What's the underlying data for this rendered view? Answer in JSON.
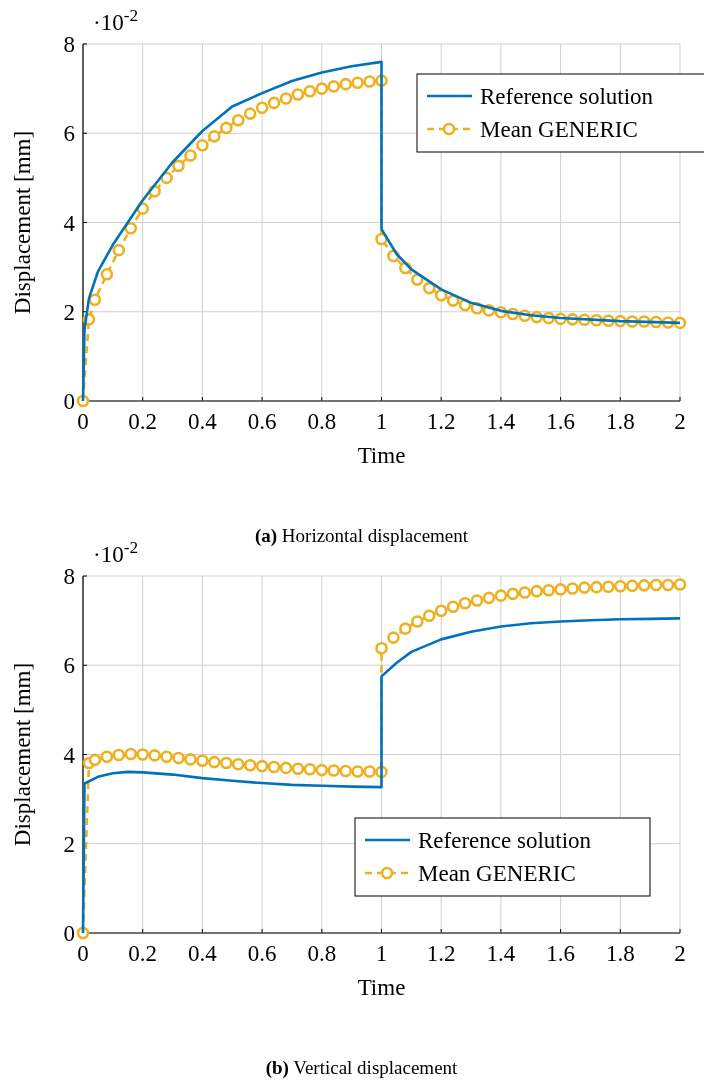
{
  "chart_data": [
    {
      "type": "line",
      "title": "(a) Horizontal displacement",
      "xlabel": "Time",
      "ylabel": "Displacement [mm]",
      "annotations": [
        "·10$^{-2}$"
      ],
      "xlim": [
        0,
        2
      ],
      "ylim": [
        0,
        8
      ],
      "xticks": [
        0,
        0.2,
        0.4,
        0.6,
        0.8,
        1,
        1.2,
        1.4,
        1.6,
        1.8,
        2
      ],
      "yticks": [
        0,
        2,
        4,
        6,
        8
      ],
      "grid": true,
      "legend": "top right",
      "series": [
        {
          "name": "Reference solution",
          "color": "#0072bd",
          "marker": "none",
          "line_style": "solid",
          "x": [
            0,
            0.005,
            0.02,
            0.05,
            0.1,
            0.15,
            0.2,
            0.3,
            0.4,
            0.5,
            0.6,
            0.7,
            0.8,
            0.9,
            1,
            1,
            1.05,
            1.1,
            1.2,
            1.3,
            1.4,
            1.5,
            1.6,
            1.8,
            2
          ],
          "values": [
            0,
            1.6,
            2.3,
            2.9,
            3.5,
            4.0,
            4.5,
            5.35,
            6.05,
            6.6,
            6.9,
            7.17,
            7.36,
            7.5,
            7.6,
            3.85,
            3.3,
            2.95,
            2.5,
            2.2,
            2.02,
            1.92,
            1.86,
            1.79,
            1.75
          ]
        },
        {
          "name": "Mean GENERIC",
          "color": "#edb120",
          "marker": "circle",
          "line_style": "dashed",
          "x": [
            0,
            0.02,
            0.04,
            0.08,
            0.12,
            0.16,
            0.2,
            0.24,
            0.28,
            0.32,
            0.36,
            0.4,
            0.44,
            0.48,
            0.52,
            0.56,
            0.6,
            0.64,
            0.68,
            0.72,
            0.76,
            0.8,
            0.84,
            0.88,
            0.92,
            0.96,
            1,
            1,
            1.04,
            1.08,
            1.12,
            1.16,
            1.2,
            1.24,
            1.28,
            1.32,
            1.36,
            1.4,
            1.44,
            1.48,
            1.52,
            1.56,
            1.6,
            1.64,
            1.68,
            1.72,
            1.76,
            1.8,
            1.84,
            1.88,
            1.92,
            1.96,
            2
          ],
          "values": [
            0,
            1.83,
            2.27,
            2.84,
            3.38,
            3.87,
            4.31,
            4.7,
            5.0,
            5.27,
            5.5,
            5.73,
            5.93,
            6.12,
            6.29,
            6.44,
            6.57,
            6.68,
            6.78,
            6.87,
            6.94,
            7.0,
            7.05,
            7.1,
            7.13,
            7.16,
            7.18,
            3.63,
            3.25,
            2.98,
            2.72,
            2.53,
            2.37,
            2.25,
            2.15,
            2.08,
            2.03,
            1.99,
            1.95,
            1.91,
            1.88,
            1.86,
            1.84,
            1.83,
            1.82,
            1.81,
            1.8,
            1.79,
            1.78,
            1.78,
            1.77,
            1.76,
            1.75
          ]
        }
      ]
    },
    {
      "type": "line",
      "title": "(b) Vertical displacement",
      "xlabel": "Time",
      "ylabel": "Displacement [mm]",
      "annotations": [
        "·10$^{-2}$"
      ],
      "xlim": [
        0,
        2
      ],
      "ylim": [
        0,
        8
      ],
      "xticks": [
        0,
        0.2,
        0.4,
        0.6,
        0.8,
        1,
        1.2,
        1.4,
        1.6,
        1.8,
        2
      ],
      "yticks": [
        0,
        2,
        4,
        6,
        8
      ],
      "grid": true,
      "legend": "bottom right",
      "series": [
        {
          "name": "Reference solution",
          "color": "#0072bd",
          "marker": "none",
          "line_style": "solid",
          "x": [
            0,
            0.005,
            0.05,
            0.1,
            0.15,
            0.2,
            0.3,
            0.4,
            0.5,
            0.6,
            0.7,
            0.8,
            0.9,
            1,
            1,
            1.05,
            1.1,
            1.2,
            1.3,
            1.4,
            1.5,
            1.6,
            1.7,
            1.8,
            1.9,
            2
          ],
          "values": [
            0,
            3.35,
            3.5,
            3.58,
            3.61,
            3.6,
            3.55,
            3.47,
            3.41,
            3.36,
            3.32,
            3.3,
            3.28,
            3.27,
            5.75,
            6.05,
            6.3,
            6.58,
            6.75,
            6.87,
            6.94,
            6.98,
            7.01,
            7.03,
            7.04,
            7.05
          ]
        },
        {
          "name": "Mean GENERIC",
          "color": "#edb120",
          "marker": "circle",
          "line_style": "dashed",
          "x": [
            0,
            0.02,
            0.04,
            0.08,
            0.12,
            0.16,
            0.2,
            0.24,
            0.28,
            0.32,
            0.36,
            0.4,
            0.44,
            0.48,
            0.52,
            0.56,
            0.6,
            0.64,
            0.68,
            0.72,
            0.76,
            0.8,
            0.84,
            0.88,
            0.92,
            0.96,
            1,
            1,
            1.04,
            1.08,
            1.12,
            1.16,
            1.2,
            1.24,
            1.28,
            1.32,
            1.36,
            1.4,
            1.44,
            1.48,
            1.52,
            1.56,
            1.6,
            1.64,
            1.68,
            1.72,
            1.76,
            1.8,
            1.84,
            1.88,
            1.92,
            1.96,
            2
          ],
          "values": [
            0,
            3.81,
            3.88,
            3.95,
            3.99,
            4.01,
            4.0,
            3.98,
            3.95,
            3.92,
            3.89,
            3.86,
            3.83,
            3.81,
            3.78,
            3.76,
            3.74,
            3.72,
            3.7,
            3.68,
            3.67,
            3.65,
            3.64,
            3.63,
            3.62,
            3.62,
            3.61,
            6.38,
            6.62,
            6.82,
            6.98,
            7.11,
            7.22,
            7.31,
            7.39,
            7.45,
            7.51,
            7.56,
            7.6,
            7.63,
            7.66,
            7.68,
            7.7,
            7.72,
            7.74,
            7.75,
            7.76,
            7.77,
            7.78,
            7.79,
            7.8,
            7.8,
            7.81
          ]
        }
      ]
    }
  ]
}
